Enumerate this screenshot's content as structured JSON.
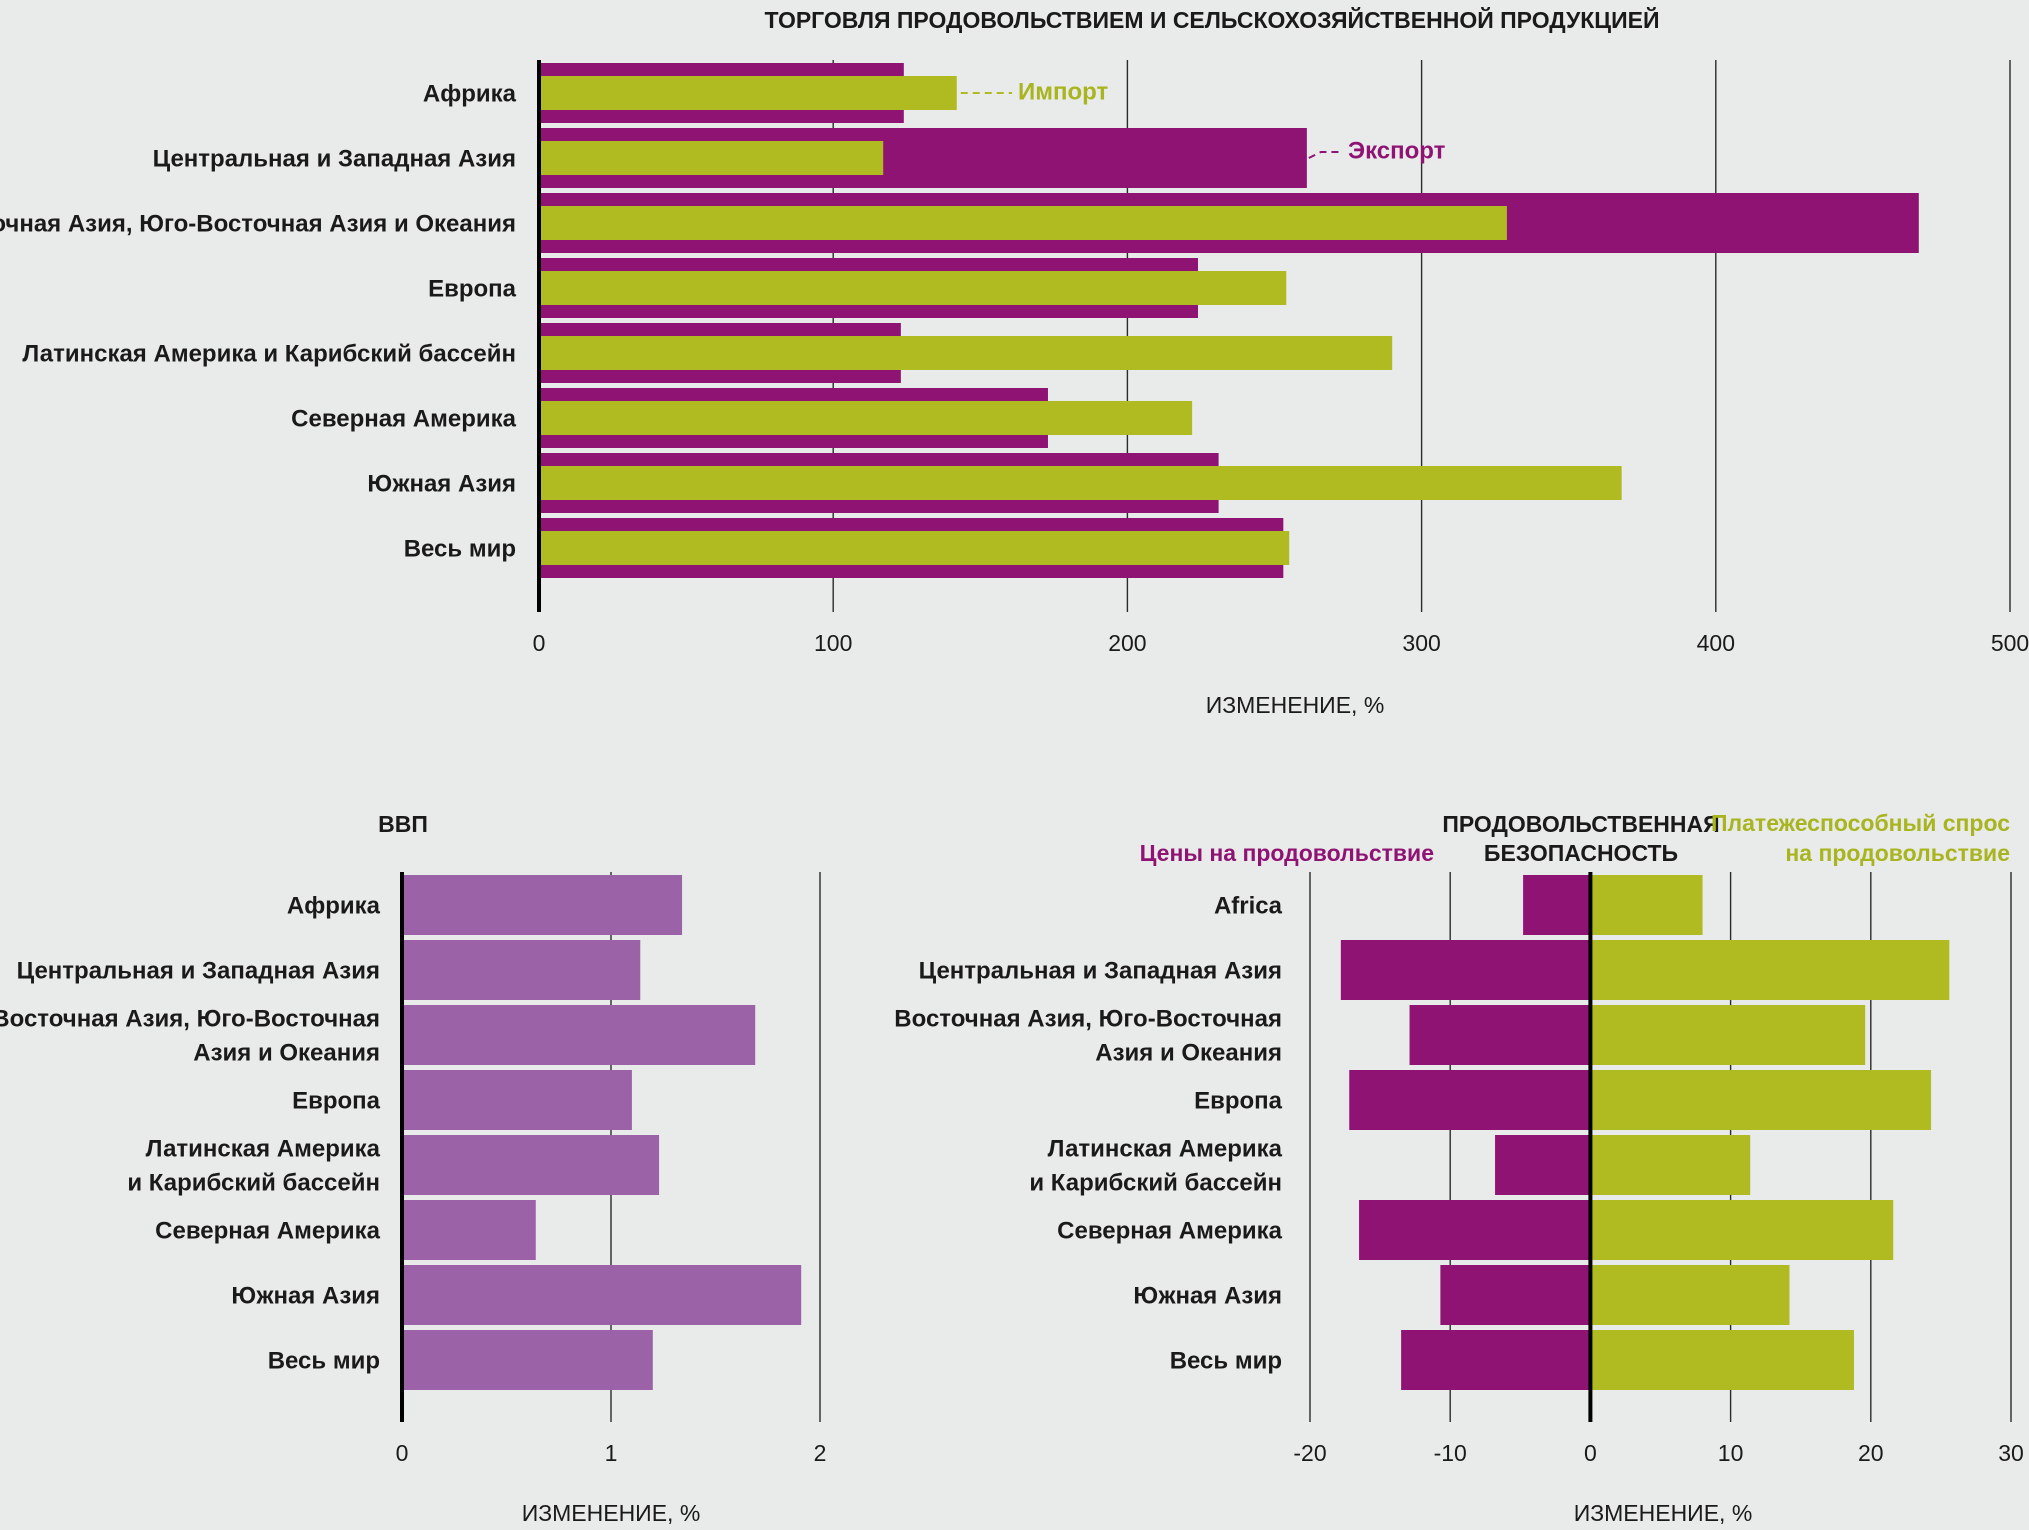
{
  "colors": {
    "export": "#8e1373",
    "import": "#afbb21",
    "gdp": "#9b62a8",
    "prices": "#8e1373",
    "demand": "#afbb21"
  },
  "chart_data": [
    {
      "id": "trade",
      "type": "bar",
      "orientation": "horizontal",
      "title": "ТОРГОВЛЯ ПРОДОВОЛЬСТВИЕМ И СЕЛЬСКОХОЗЯЙСТВЕННОЙ ПРОДУКЦИЕЙ",
      "xlabel": "ИЗМЕНЕНИЕ, %",
      "xlim": [
        0,
        500
      ],
      "ticks": [
        "0",
        "100",
        "200",
        "300",
        "400",
        "500"
      ],
      "categories": [
        "Африка",
        "Центральная и Западная Азия",
        "Восточная Азия, Юго-Восточная Азия и Океания",
        "Европа",
        "Латинская Америка и Карибский бассейн",
        "Северная Америка",
        "Южная Азия",
        "Весь мир"
      ],
      "series": [
        {
          "name": "Экспорт",
          "values": [
            124,
            261,
            469,
            224,
            123,
            173,
            231,
            253
          ]
        },
        {
          "name": "Импорт",
          "values": [
            142,
            117,
            329,
            254,
            290,
            222,
            368,
            255
          ]
        }
      ],
      "annotations": {
        "import": "Импорт",
        "export": "Экспорт"
      }
    },
    {
      "id": "gdp",
      "type": "bar",
      "orientation": "horizontal",
      "title": "ВВП",
      "xlabel": "ИЗМЕНЕНИЕ, %",
      "xlim": [
        0,
        2
      ],
      "ticks": [
        "0",
        "1",
        "2"
      ],
      "categories": [
        "Африка",
        "Центральная и Западная Азия",
        "Восточная Азия, Юго-Восточная|Азия и Океания",
        "Европа",
        "Латинская Америка|и Карибский бассейн",
        "Северная Америка",
        "Южная Азия",
        "Весь мир"
      ],
      "series": [
        {
          "name": "ВВП",
          "values": [
            1.34,
            1.14,
            1.69,
            1.1,
            1.23,
            0.64,
            1.91,
            1.2
          ]
        }
      ]
    },
    {
      "id": "foodsec",
      "type": "bar",
      "orientation": "horizontal",
      "title_lines": [
        "ПРОДОВОЛЬСТВЕННАЯ",
        "БЕЗОПАСНОСТЬ"
      ],
      "xlabel": "ИЗМЕНЕНИЕ, %",
      "xlim": [
        -20,
        30
      ],
      "ticks": [
        "-20",
        "-10",
        "0",
        "10",
        "20",
        "30"
      ],
      "categories": [
        "Africa",
        "Центральная и Западная Азия",
        "Восточная Азия, Юго-Восточная|Азия и Океания",
        "Европа",
        "Латинская Америка|и Карибский бассейн",
        "Северная Америка",
        "Южная Азия",
        "Весь мир"
      ],
      "series": [
        {
          "name": "Цены на продовольствие",
          "values": [
            -4.8,
            -17.8,
            -12.9,
            -17.2,
            -6.8,
            -16.5,
            -10.7,
            -13.5
          ]
        },
        {
          "name": "Платежеспособный спрос|на продовольствие",
          "values": [
            8.0,
            25.6,
            19.6,
            24.3,
            11.4,
            21.6,
            14.2,
            18.8
          ]
        }
      ]
    }
  ]
}
